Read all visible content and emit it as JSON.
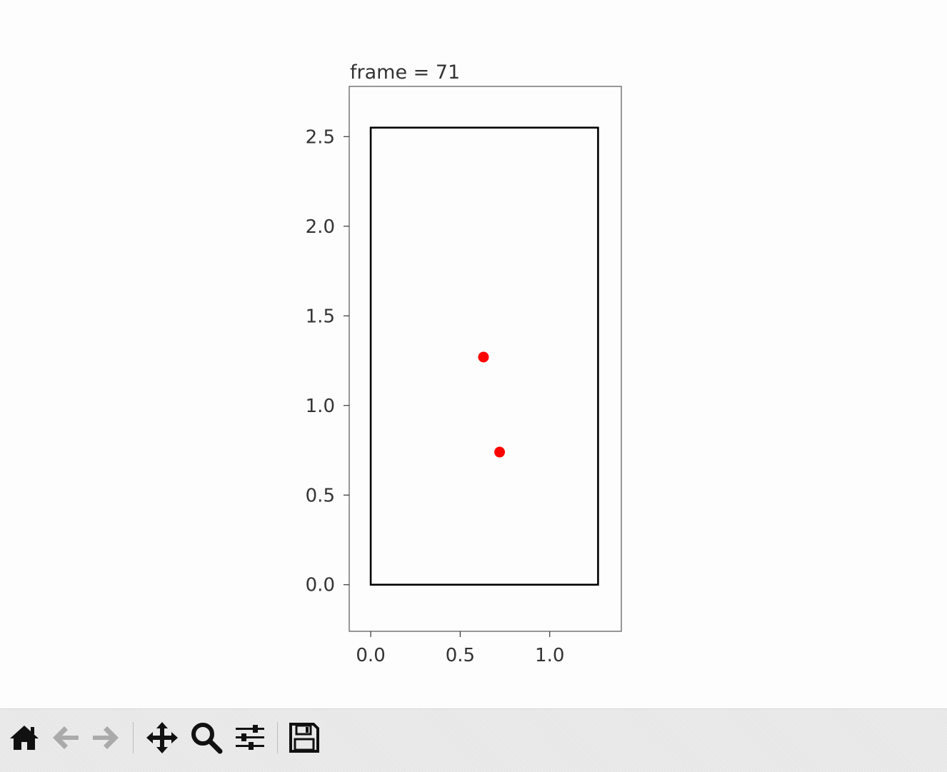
{
  "chart_data": {
    "type": "scatter",
    "title": "frame = 71",
    "xlim": [
      -0.12,
      1.4
    ],
    "ylim": [
      -0.26,
      2.78
    ],
    "x_ticks": [
      "0.0",
      "0.5",
      "1.0"
    ],
    "y_ticks": [
      "0.0",
      "0.5",
      "1.0",
      "1.5",
      "2.0",
      "2.5"
    ],
    "boundary_box": {
      "x0": 0.0,
      "y0": 0.0,
      "x1": 1.27,
      "y1": 2.55,
      "color": "#000000"
    },
    "points": [
      {
        "x": 0.63,
        "y": 1.27
      },
      {
        "x": 0.72,
        "y": 0.74
      }
    ],
    "point_color": "#ff0000",
    "axes_color": "#555555",
    "grid": false
  },
  "toolbar": {
    "buttons": [
      {
        "name": "home",
        "icon": "home-icon",
        "enabled": true
      },
      {
        "name": "back",
        "icon": "arrow-left-icon",
        "enabled": false
      },
      {
        "name": "forward",
        "icon": "arrow-right-icon",
        "enabled": false
      },
      {
        "name": "pan",
        "icon": "move-icon",
        "enabled": true
      },
      {
        "name": "zoom",
        "icon": "magnifier-icon",
        "enabled": true
      },
      {
        "name": "configure",
        "icon": "sliders-icon",
        "enabled": true
      },
      {
        "name": "save",
        "icon": "floppy-disk-icon",
        "enabled": true
      }
    ]
  }
}
